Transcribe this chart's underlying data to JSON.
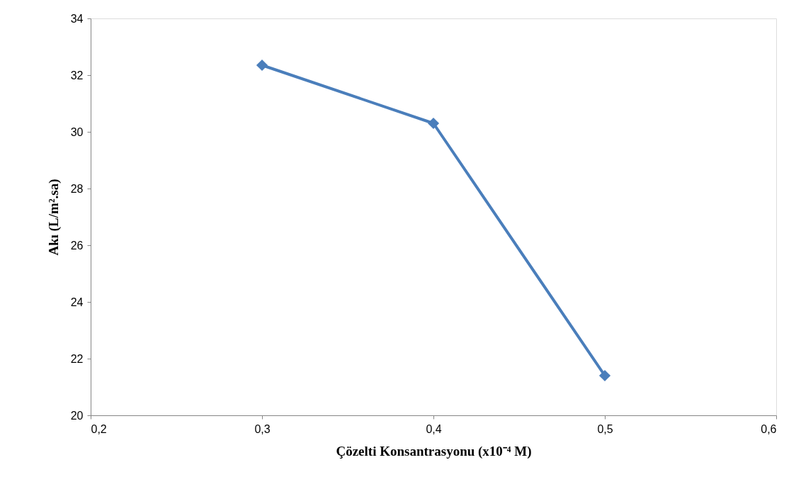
{
  "chart_data": {
    "type": "line",
    "xlabel": "Çözelti Konsantrasyonu (x10⁻⁴ M)",
    "ylabel": "Akı (L/m².sa)",
    "x": [
      0.3,
      0.4,
      0.5
    ],
    "series": [
      {
        "color": "#4a7ebb",
        "values": [
          32.35,
          30.3,
          21.4
        ]
      }
    ],
    "xlim": [
      0.2,
      0.6
    ],
    "xticks": [
      {
        "value": 0.2,
        "label": "0,2"
      },
      {
        "value": 0.3,
        "label": "0,3"
      },
      {
        "value": 0.4,
        "label": "0,4"
      },
      {
        "value": 0.5,
        "label": "0,5"
      },
      {
        "value": 0.6,
        "label": "0,6"
      }
    ],
    "ylim": [
      20,
      34
    ],
    "yticks": [
      20,
      22,
      24,
      26,
      28,
      30,
      32,
      34
    ],
    "grid": false,
    "marker": "diamond",
    "line_style": "solid"
  }
}
